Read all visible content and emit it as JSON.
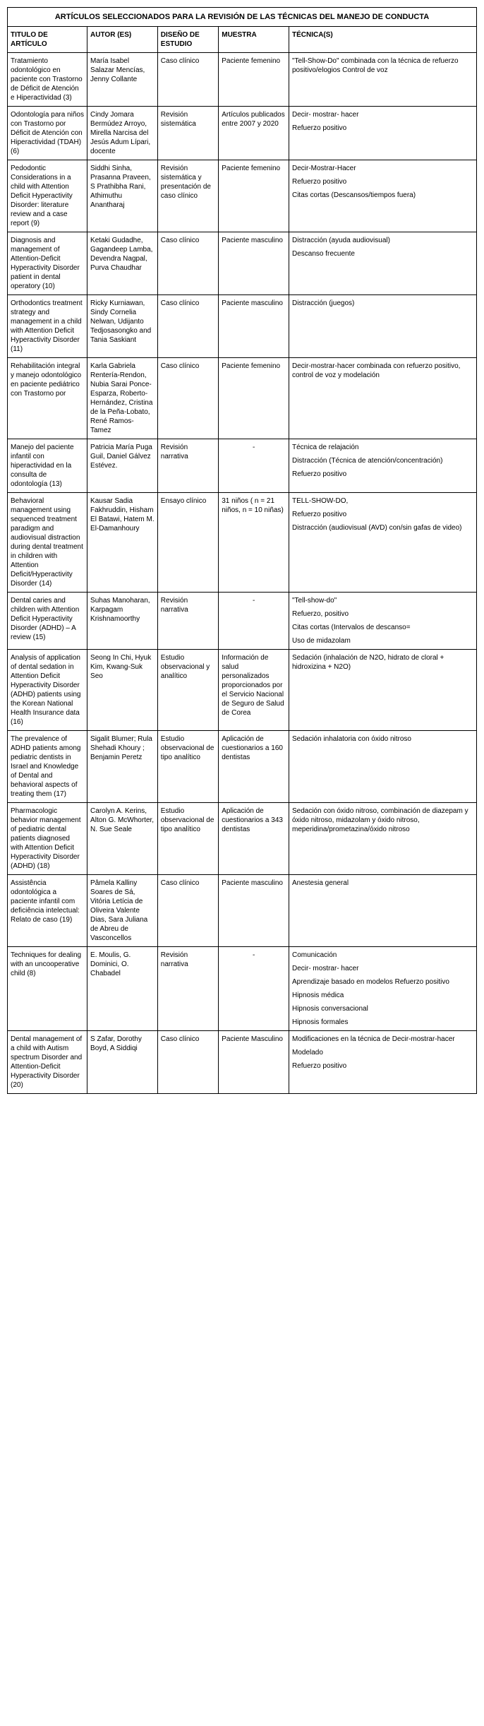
{
  "table_title": "ARTÍCULOS SELECCIONADOS PARA LA REVISIÓN DE LAS TÉCNICAS DEL MANEJO DE CONDUCTA",
  "headers": {
    "col1": "TITULO DE ARTÍCULO",
    "col2": "AUTOR (ES)",
    "col3": "DISEÑO DE ESTUDIO",
    "col4": "MUESTRA",
    "col5": "TÉCNICA(S)"
  },
  "rows": [
    {
      "title": "Tratamiento odontológico en paciente con Trastorno de Déficit de Atención e Hiperactividad (3)",
      "author": "María Isabel Salazar Mencías, Jenny Collante",
      "design": "Caso clínico",
      "sample": "Paciente femenino",
      "techniques": [
        "\"Tell-Show-Do\" combinada con la técnica de refuerzo positivo/elogios Control de voz"
      ]
    },
    {
      "title": "Odontología para niños con Trastorno por Déficit de Atención con Hiperactividad (TDAH) (6)",
      "author": "Cindy Jomara Bermúdez Arroyo, Mirella Narcisa del Jesús Adum Lípari, docente",
      "design": "Revisión sistemática",
      "sample": "Artículos publicados entre 2007 y 2020",
      "techniques": [
        "Decir- mostrar- hacer",
        "Refuerzo positivo"
      ]
    },
    {
      "title": "Pedodontic Considerations in a child with Attention Deficit Hyperactivity Disorder: literature review and a case report (9)",
      "author": "Siddhi Sinha, Prasanna Praveen, S Prathibha Rani, Athimuthu Anantharaj",
      "design": "Revisión sistemática y presentación de caso clínico",
      "sample": "Paciente femenino",
      "techniques": [
        "Decir-Mostrar-Hacer",
        "Refuerzo positivo",
        "Citas cortas (Descansos/tiempos fuera)"
      ]
    },
    {
      "title": "Diagnosis and management of Attention-Deficit Hyperactivity Disorder patient in dental operatory (10)",
      "author": "Ketaki Gudadhe, Gagandeep Lamba, Devendra Nagpal, Purva Chaudhar",
      "design": "Caso clínico",
      "sample": "Paciente masculino",
      "techniques": [
        "Distracción (ayuda audiovisual)",
        "Descanso frecuente"
      ]
    },
    {
      "title": "Orthodontics treatment strategy and management in a child with Attention Deficit Hyperactivity Disorder (11)",
      "author": "Ricky Kurniawan, Sindy Cornelia Nelwan, Udijanto Tedjosasongko and Tania Saskiant",
      "design": "Caso clínico",
      "sample": "Paciente masculino",
      "techniques": [
        "Distracción (juegos)"
      ]
    },
    {
      "title": "Rehabilitación integral y manejo odontológico en paciente pediátrico con Trastorno por",
      "author": "Karla Gabriela Rentería-Rendon, Nubia Sarai Ponce-Esparza, Roberto-Hernández, Cristina de la Peña-Lobato, René Ramos-Tamez",
      "design": "Caso clínico",
      "sample": "Paciente femenino",
      "techniques": [
        "Decir-mostrar-hacer combinada con refuerzo positivo, control de voz y modelación"
      ]
    },
    {
      "title": "Manejo del paciente infantil con hiperactividad en la consulta de odontología (13)",
      "author": "Patricia María Puga Guil, Daniel Gálvez Estévez.",
      "design": "Revisión narrativa",
      "sample": "-",
      "techniques": [
        "Técnica de relajación",
        "Distracción (Técnica de atención/concentración)",
        "Refuerzo positivo"
      ]
    },
    {
      "title": "Behavioral management using sequenced treatment paradigm and audiovisual distraction during dental treatment in children with Attention Deficit/Hyperactivity Disorder (14)",
      "author": "Kausar Sadia Fakhruddin, Hisham El Batawi, Hatem M. El-Damanhoury",
      "design": "Ensayo clínico",
      "sample": "31 niños ( n = 21 niños, n = 10 niñas)",
      "techniques": [
        "TELL-SHOW-DO,",
        "Refuerzo positivo",
        "Distracción (audiovisual (AVD) con/sin gafas de video)"
      ]
    },
    {
      "title": "Dental caries and children with Attention Deficit Hyperactivity Disorder (ADHD) – A review (15)",
      "author": "Suhas Manoharan, Karpagam Krishnamoorthy",
      "design": "Revisión narrativa",
      "sample": "-",
      "techniques": [
        "\"Tell-show-do\"",
        "Refuerzo, positivo",
        "Citas cortas (Intervalos de descanso=",
        "Uso de midazolam"
      ]
    },
    {
      "title": "Analysis of application of dental sedation in Attention Deficit Hyperactivity Disorder (ADHD) patients using the Korean National Health Insurance data (16)",
      "author": "Seong In Chi, Hyuk Kim, Kwang-Suk Seo",
      "design": "Estudio observacional y analítico",
      "sample": "Información de salud personalizados proporcionados por el Servicio Nacional de Seguro de Salud de Corea",
      "techniques": [
        "Sedación (inhalación de N2O, hidrato de cloral + hidroxizina + N2O)"
      ]
    },
    {
      "title": "The prevalence of ADHD patients among pediatric dentists in Israel and Knowledge of Dental and behavioral aspects of treating them (17)",
      "author": "Sigalit Blumer; Rula Shehadi Khoury ; Benjamin Peretz",
      "design": "Estudio observacional de tipo analítico",
      "sample": "Aplicación de cuestionarios a 160 dentistas",
      "techniques": [
        "Sedación inhalatoria con óxido nitroso"
      ]
    },
    {
      "title": "Pharmacologic behavior management of pediatric dental patients diagnosed with Attention Deficit Hyperactivity Disorder (ADHD) (18)",
      "author": "Carolyn A. Kerins, Alton G. McWhorter, N. Sue Seale",
      "design": "Estudio observacional de tipo analítico",
      "sample": "Aplicación de cuestionarios a 343 dentistas",
      "techniques": [
        "Sedación con óxido nitroso, combinación de diazepam y óxido nitroso, midazolam y óxido nitroso, meperidina/prometazina/óxido nitroso"
      ]
    },
    {
      "title": "Assistência odontológica a paciente infantil com deficiência intelectual: Relato de caso (19)",
      "author": "Pâmela Kalliny Soares de Sá, Vitória Letícia de Oliveira Valente Dias, Sara Juliana de Abreu de Vasconcellos",
      "design": "Caso clínico",
      "sample": "Paciente masculino",
      "techniques": [
        "Anestesia general"
      ]
    },
    {
      "title": "Techniques for dealing with an uncooperative child (8)",
      "author": "E. Moulis, G. Dominici, O. Chabadel",
      "design": "Revisión narrativa",
      "sample": "-",
      "techniques": [
        "Comunicación",
        "Decir- mostrar- hacer",
        "Aprendizaje basado en modelos Refuerzo positivo",
        "Hipnosis médica",
        "Hipnosis conversacional",
        "Hipnosis formales"
      ]
    },
    {
      "title": "Dental management of a child with Autism spectrum Disorder and Attention-Deficit Hyperactivity Disorder (20)",
      "author": "S Zafar, Dorothy Boyd, A Siddiqi",
      "design": "Caso clínico",
      "sample": "Paciente Masculino",
      "techniques": [
        "Modificaciones en la técnica de Decir-mostrar-hacer",
        "Modelado",
        "Refuerzo positivo"
      ]
    }
  ]
}
